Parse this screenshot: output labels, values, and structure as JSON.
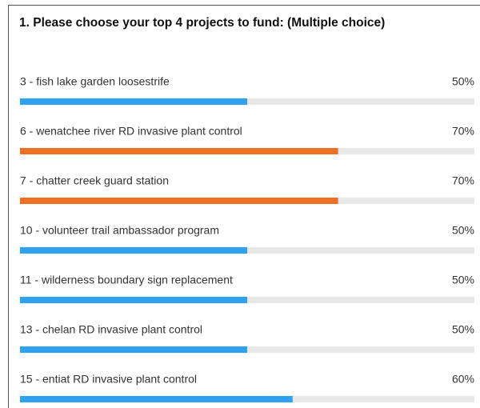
{
  "chart_data": {
    "type": "hbar",
    "title": "1. Please choose your top 4 projects to fund: (Multiple choice)",
    "categories": [
      "3 - fish lake garden loosestrife",
      "6 - wenatchee river RD invasive plant control",
      "7 - chatter creek guard station",
      "10 - volunteer trail ambassador program",
      "11 - wilderness boundary sign replacement",
      "13 - chelan RD invasive plant control",
      "15 - entiat RD invasive plant control"
    ],
    "values": [
      50,
      70,
      70,
      50,
      50,
      50,
      60
    ],
    "value_labels": [
      "50%",
      "70%",
      "70%",
      "50%",
      "50%",
      "50%",
      "60%"
    ],
    "colors": [
      "#2ea1f0",
      "#f07125",
      "#f07125",
      "#2ea1f0",
      "#2ea1f0",
      "#2ea1f0",
      "#2ea1f0"
    ],
    "track_color": "#e8e8e8",
    "xlim": [
      0,
      100
    ]
  }
}
